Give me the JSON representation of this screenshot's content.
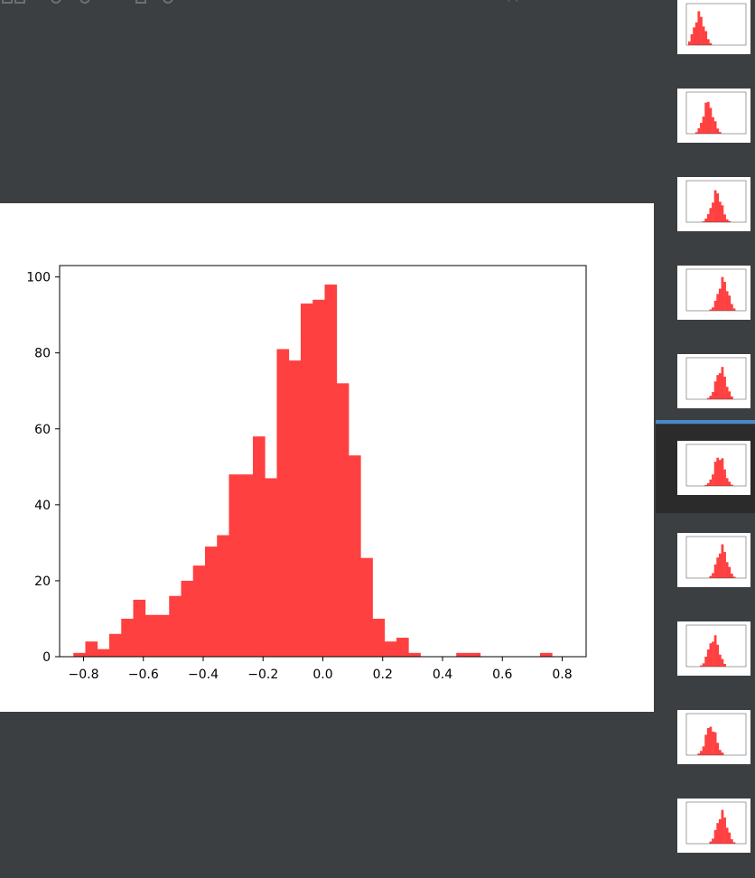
{
  "toolbar": {
    "partial_text": "(      )"
  },
  "plot": {
    "chart_data": {
      "type": "bar",
      "title": "",
      "xlabel": "",
      "ylabel": "",
      "xlim": [
        -0.88,
        0.88
      ],
      "ylim": [
        0,
        103
      ],
      "xticks": [
        -0.8,
        -0.6,
        -0.4,
        -0.2,
        0.0,
        0.2,
        0.4,
        0.6,
        0.8
      ],
      "xtick_labels": [
        "−0.8",
        "−0.6",
        "−0.4",
        "−0.2",
        "0.0",
        "0.2",
        "0.4",
        "0.6",
        "0.8"
      ],
      "yticks": [
        0,
        20,
        40,
        60,
        80,
        100
      ],
      "ytick_labels": [
        "0",
        "20",
        "40",
        "60",
        "80",
        "100"
      ],
      "bin_edges": [
        -0.834,
        -0.794,
        -0.754,
        -0.714,
        -0.674,
        -0.634,
        -0.594,
        -0.554,
        -0.514,
        -0.474,
        -0.434,
        -0.394,
        -0.354,
        -0.314,
        -0.274,
        -0.234,
        -0.194,
        -0.154,
        -0.114,
        -0.074,
        -0.034,
        0.006,
        0.046,
        0.086,
        0.126,
        0.166,
        0.206,
        0.246,
        0.286,
        0.326,
        0.366,
        0.406,
        0.446,
        0.486,
        0.526,
        0.566,
        0.606,
        0.646,
        0.686,
        0.726,
        0.766
      ],
      "counts": [
        1,
        4,
        2,
        6,
        10,
        15,
        11,
        11,
        16,
        20,
        24,
        29,
        32,
        48,
        48,
        58,
        47,
        81,
        78,
        93,
        94,
        98,
        72,
        53,
        26,
        10,
        4,
        5,
        1,
        0,
        0,
        0,
        1,
        1,
        0,
        0,
        0,
        0,
        0,
        1
      ],
      "color": "#ff4040"
    }
  },
  "thumbnails": [
    {
      "name": "thumb-1",
      "top": -10,
      "selected": false
    },
    {
      "name": "thumb-2",
      "top": 88,
      "selected": false
    },
    {
      "name": "thumb-3",
      "top": 186,
      "selected": false
    },
    {
      "name": "thumb-4",
      "top": 284,
      "selected": false
    },
    {
      "name": "thumb-5",
      "top": 382,
      "selected": false
    },
    {
      "name": "thumb-6",
      "top": 470,
      "selected": true
    },
    {
      "name": "thumb-7",
      "top": 580,
      "selected": false
    },
    {
      "name": "thumb-8",
      "top": 678,
      "selected": false
    },
    {
      "name": "thumb-9",
      "top": 776,
      "selected": false
    },
    {
      "name": "thumb-10",
      "top": 874,
      "selected": false
    }
  ],
  "colors": {
    "background": "#3c3f41",
    "selected_bg": "#2b2b2b",
    "accent": "#4a88c7",
    "bar": "#ff4040"
  }
}
